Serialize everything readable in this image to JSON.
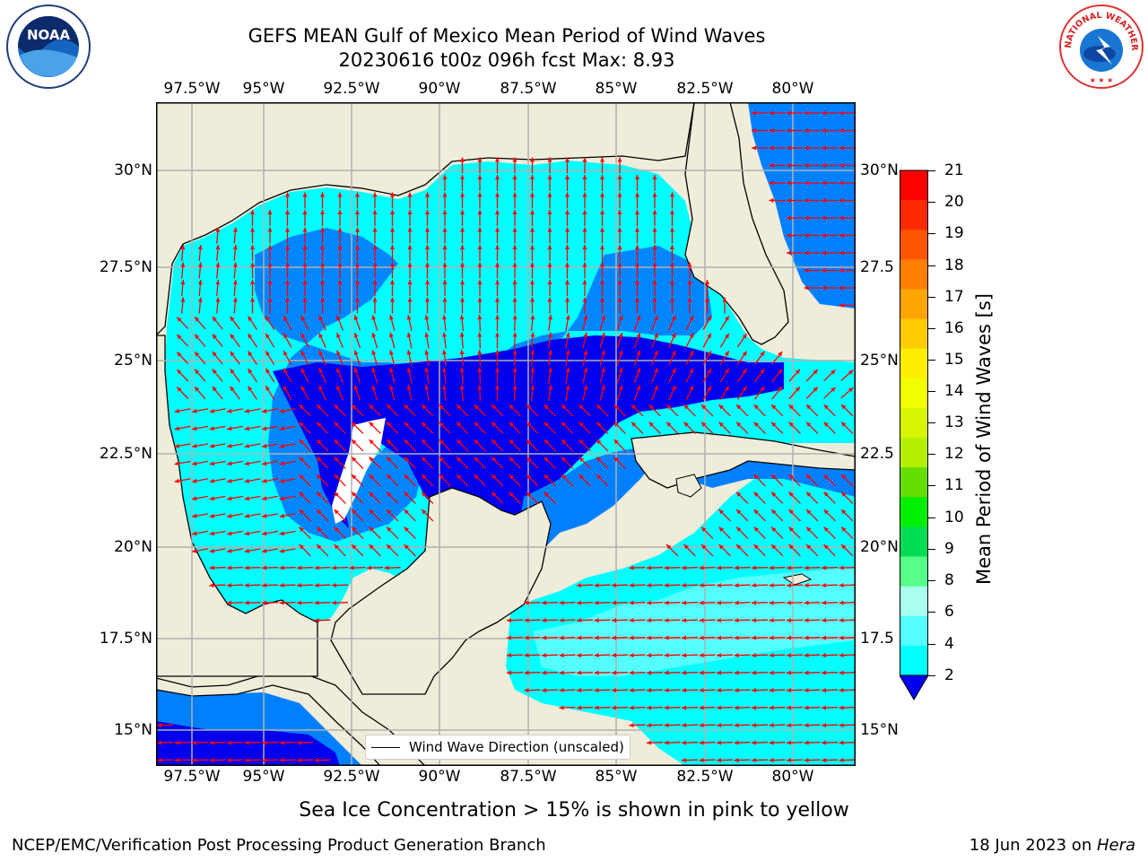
{
  "title": {
    "line1": "GEFS MEAN Gulf of Mexico Mean Period of Wind Waves",
    "line2": "20230616 t00z 096h fcst   Max: 8.93"
  },
  "map": {
    "lon_labels": [
      "97.5°W",
      "95°W",
      "92.5°W",
      "90°W",
      "87.5°W",
      "85°W",
      "82.5°W",
      "80°W"
    ],
    "lat_labels": [
      "30°N",
      "27.5°N",
      "25°N",
      "22.5°N",
      "20°N",
      "17.5°N",
      "15°N"
    ],
    "right_lat_labels": [
      "30°N",
      "27.5",
      "25°N",
      "22.5",
      "20°N",
      "17.5",
      "15°N"
    ],
    "legend_label": "Wind Wave Direction (unscaled)",
    "land_color": "#efecda",
    "arrow_color": "#ff0000"
  },
  "colorbar": {
    "title": "Mean Period of Wind Waves [s]",
    "tick_labels": [
      "21",
      "20",
      "19",
      "18",
      "17",
      "16",
      "15",
      "14",
      "13",
      "12",
      "11",
      "10",
      "9",
      "8",
      "6",
      "4",
      "2"
    ],
    "colors": [
      "#ff0000",
      "#ff2a00",
      "#ff5500",
      "#ff7f00",
      "#ffa500",
      "#ffcc00",
      "#ffee00",
      "#f0ff00",
      "#d6f500",
      "#b4ee00",
      "#66dd00",
      "#00ee00",
      "#00dd55",
      "#55ff88",
      "#aaffee",
      "#55ffff",
      "#00ffff",
      "#0080ff",
      "#0000ee"
    ],
    "extend_color": "#0000ee"
  },
  "note": "Sea Ice Concentration > 15% is shown in pink to yellow",
  "footer": {
    "left": "NCEP/EMC/Verification Post Processing Product Generation Branch",
    "right_prefix": "18 Jun 2023 on ",
    "right_host": "Hera"
  },
  "logos": {
    "noaa": "NOAA",
    "nws": "NATIONAL WEATHER SERVICE"
  }
}
